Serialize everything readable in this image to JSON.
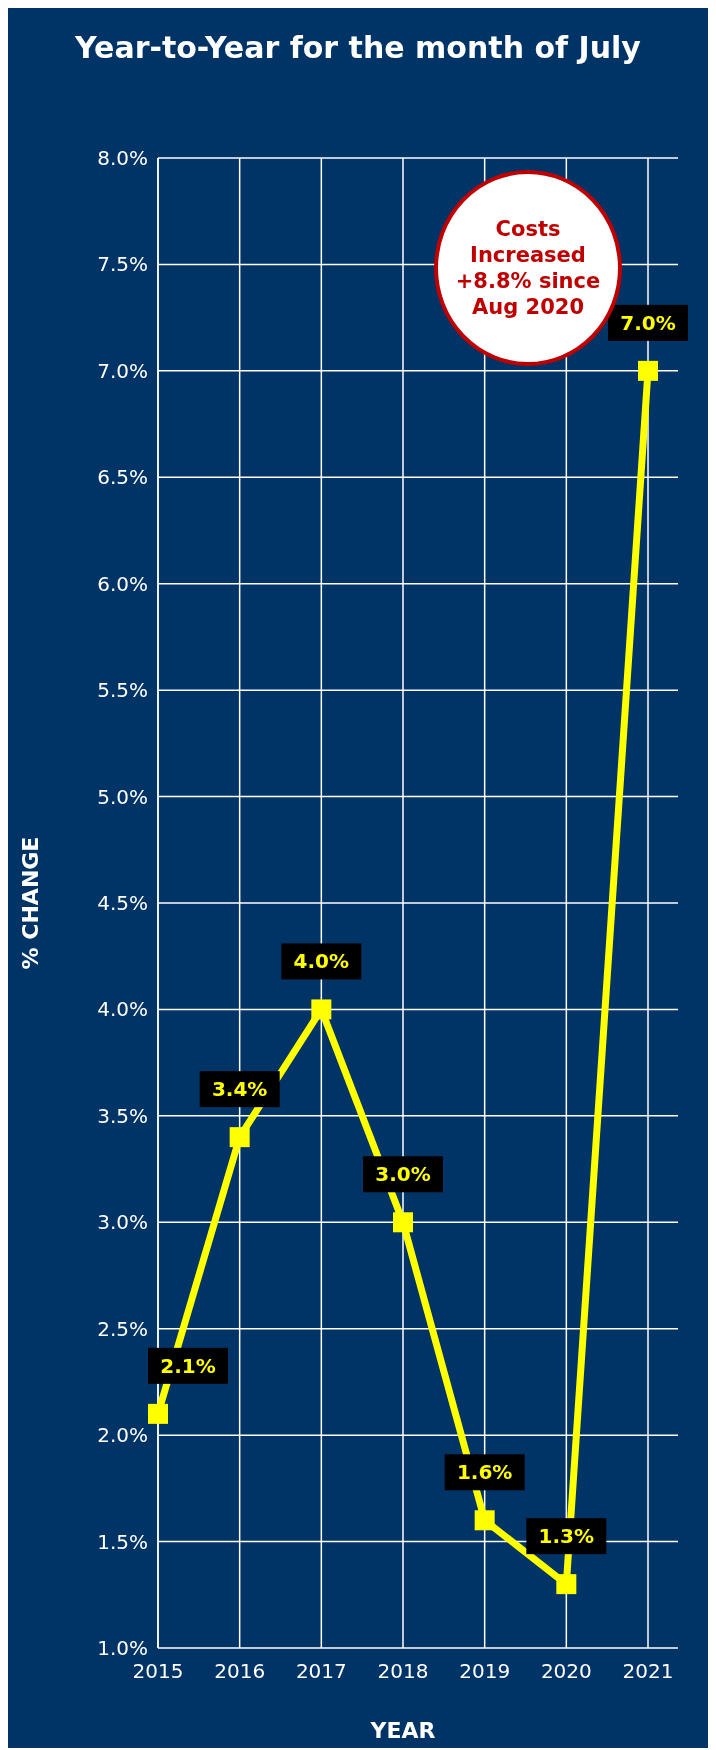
{
  "chart_data": {
    "type": "line",
    "title": "Year-to-Year for the month of July",
    "xlabel": "YEAR",
    "ylabel": "% CHANGE",
    "categories": [
      "2015",
      "2016",
      "2017",
      "2018",
      "2019",
      "2020",
      "2021"
    ],
    "series": [
      {
        "color": "#ffff00",
        "values": [
          2.1,
          3.4,
          4.0,
          3.0,
          1.6,
          1.3,
          7.0
        ]
      }
    ],
    "value_labels": [
      "2.1%",
      "3.4%",
      "4.0%",
      "3.0%",
      "1.6%",
      "1.3%",
      "7.0%"
    ],
    "ylim": [
      1,
      8
    ],
    "yticks": [
      {
        "value": 1,
        "label": "1.0%"
      },
      {
        "value": 1.5,
        "label": "1.5%"
      },
      {
        "value": 2,
        "label": "2.0%"
      },
      {
        "value": 2.5,
        "label": "2.5%"
      },
      {
        "value": 3,
        "label": "3.0%"
      },
      {
        "value": 3.5,
        "label": "3.5%"
      },
      {
        "value": 4,
        "label": "4.0%"
      },
      {
        "value": 4.5,
        "label": "4.5%"
      },
      {
        "value": 5,
        "label": "5.0%"
      },
      {
        "value": 5.5,
        "label": "5.5%"
      },
      {
        "value": 6,
        "label": "6.0%"
      },
      {
        "value": 6.5,
        "label": "6.5%"
      },
      {
        "value": 7,
        "label": "7.0%"
      },
      {
        "value": 7.5,
        "label": "7.5%"
      },
      {
        "value": 8,
        "label": "8.0%"
      }
    ],
    "grid": true,
    "marker": "square",
    "line_style": "solid",
    "annotations": [
      "Costs Increased +8.8% since Aug 2020"
    ]
  }
}
